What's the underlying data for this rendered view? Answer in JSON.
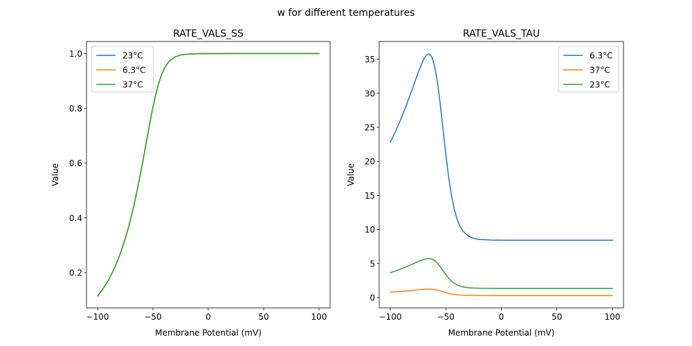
{
  "figure": {
    "suptitle": "w for different temperatures"
  },
  "chart_data": [
    {
      "type": "line",
      "title": "RATE_VALS_SS",
      "xlabel": "Membrane Potential (mV)",
      "ylabel": "Value",
      "xlim": [
        -110,
        110
      ],
      "ylim": [
        0.071,
        1.044
      ],
      "xticks": [
        -100,
        -50,
        0,
        50,
        100
      ],
      "xtick_labels": [
        "−100",
        "−50",
        "0",
        "50",
        "100"
      ],
      "yticks": [
        0.2,
        0.4,
        0.6,
        0.8,
        1.0
      ],
      "ytick_labels": [
        "0.2",
        "0.4",
        "0.6",
        "0.8",
        "1.0"
      ],
      "grid": false,
      "legend_position": "upper-left",
      "x": [
        -100,
        -95,
        -90,
        -85,
        -80,
        -75,
        -70,
        -67.5,
        -65,
        -62.5,
        -60,
        -57.5,
        -55,
        -52.5,
        -50,
        -47.5,
        -45,
        -42.5,
        -40,
        -37.5,
        -35,
        -30,
        -25,
        -20,
        -10,
        0,
        25,
        50,
        75,
        100
      ],
      "series": [
        {
          "name": "23°C",
          "color": "#1f77b4",
          "values": [
            0.1146,
            0.1411,
            0.1738,
            0.2139,
            0.2633,
            0.3238,
            0.3973,
            0.4396,
            0.4855,
            0.535,
            0.5876,
            0.6424,
            0.6981,
            0.7526,
            0.8038,
            0.8495,
            0.8882,
            0.9193,
            0.9432,
            0.9607,
            0.9732,
            0.9879,
            0.9947,
            0.9977,
            0.9996,
            0.9999,
            1.0,
            1.0,
            1.0,
            1.0
          ]
        },
        {
          "name": "6.3°C",
          "color": "#ff7f0e",
          "values": [
            0.1146,
            0.1411,
            0.1738,
            0.2139,
            0.2633,
            0.3238,
            0.3973,
            0.4396,
            0.4855,
            0.535,
            0.5876,
            0.6424,
            0.6981,
            0.7526,
            0.8038,
            0.8495,
            0.8882,
            0.9193,
            0.9432,
            0.9607,
            0.9732,
            0.9879,
            0.9947,
            0.9977,
            0.9996,
            0.9999,
            1.0,
            1.0,
            1.0,
            1.0
          ]
        },
        {
          "name": "37°C",
          "color": "#2ca02c",
          "values": [
            0.1146,
            0.1411,
            0.1738,
            0.2139,
            0.2633,
            0.3238,
            0.3973,
            0.4396,
            0.4855,
            0.535,
            0.5876,
            0.6424,
            0.6981,
            0.7526,
            0.8038,
            0.8495,
            0.8882,
            0.9193,
            0.9432,
            0.9607,
            0.9732,
            0.9879,
            0.9947,
            0.9977,
            0.9996,
            0.9999,
            1.0,
            1.0,
            1.0,
            1.0
          ]
        }
      ]
    },
    {
      "type": "line",
      "title": "RATE_VALS_TAU",
      "xlabel": "Membrane Potential (mV)",
      "ylabel": "Value",
      "xlim": [
        -110,
        110
      ],
      "ylim": [
        -1.53,
        37.6
      ],
      "xticks": [
        -100,
        -50,
        0,
        50,
        100
      ],
      "xtick_labels": [
        "−100",
        "−50",
        "0",
        "50",
        "100"
      ],
      "yticks": [
        0,
        5,
        10,
        15,
        20,
        25,
        30,
        35
      ],
      "ytick_labels": [
        "0",
        "5",
        "10",
        "15",
        "20",
        "25",
        "30",
        "35"
      ],
      "grid": false,
      "legend_position": "upper-right",
      "x": [
        -100,
        -95,
        -90,
        -85,
        -80,
        -75,
        -70,
        -67.5,
        -65,
        -62.5,
        -60,
        -57.5,
        -55,
        -52.5,
        -50,
        -47.5,
        -45,
        -42.5,
        -40,
        -37.5,
        -35,
        -30,
        -25,
        -20,
        -10,
        0,
        25,
        50,
        75,
        100
      ],
      "series": [
        {
          "name": "6.3°C",
          "color": "#1f77b4",
          "values": [
            22.83,
            24.52,
            26.4,
            28.47,
            30.71,
            33.0,
            35.0,
            35.63,
            35.8,
            35.3,
            33.92,
            31.57,
            28.37,
            24.69,
            21.0,
            17.72,
            15.05,
            13.03,
            11.56,
            10.54,
            9.83,
            9.04,
            8.69,
            8.53,
            8.44,
            8.42,
            8.42,
            8.42,
            8.42,
            8.42
          ]
        },
        {
          "name": "37°C",
          "color": "#ff7f0e",
          "values": [
            0.783,
            0.841,
            0.905,
            0.977,
            1.053,
            1.132,
            1.2,
            1.222,
            1.228,
            1.211,
            1.163,
            1.083,
            0.973,
            0.847,
            0.72,
            0.608,
            0.516,
            0.447,
            0.396,
            0.361,
            0.337,
            0.31,
            0.298,
            0.293,
            0.289,
            0.289,
            0.289,
            0.289,
            0.289,
            0.289
          ]
        },
        {
          "name": "23°C",
          "color": "#2ca02c",
          "values": [
            3.646,
            3.916,
            4.216,
            4.546,
            4.904,
            5.27,
            5.588,
            5.69,
            5.717,
            5.638,
            5.416,
            5.041,
            4.53,
            3.942,
            3.354,
            2.83,
            2.404,
            2.081,
            1.846,
            1.683,
            1.57,
            1.443,
            1.388,
            1.363,
            1.348,
            1.345,
            1.344,
            1.344,
            1.344,
            1.344
          ]
        }
      ]
    }
  ]
}
